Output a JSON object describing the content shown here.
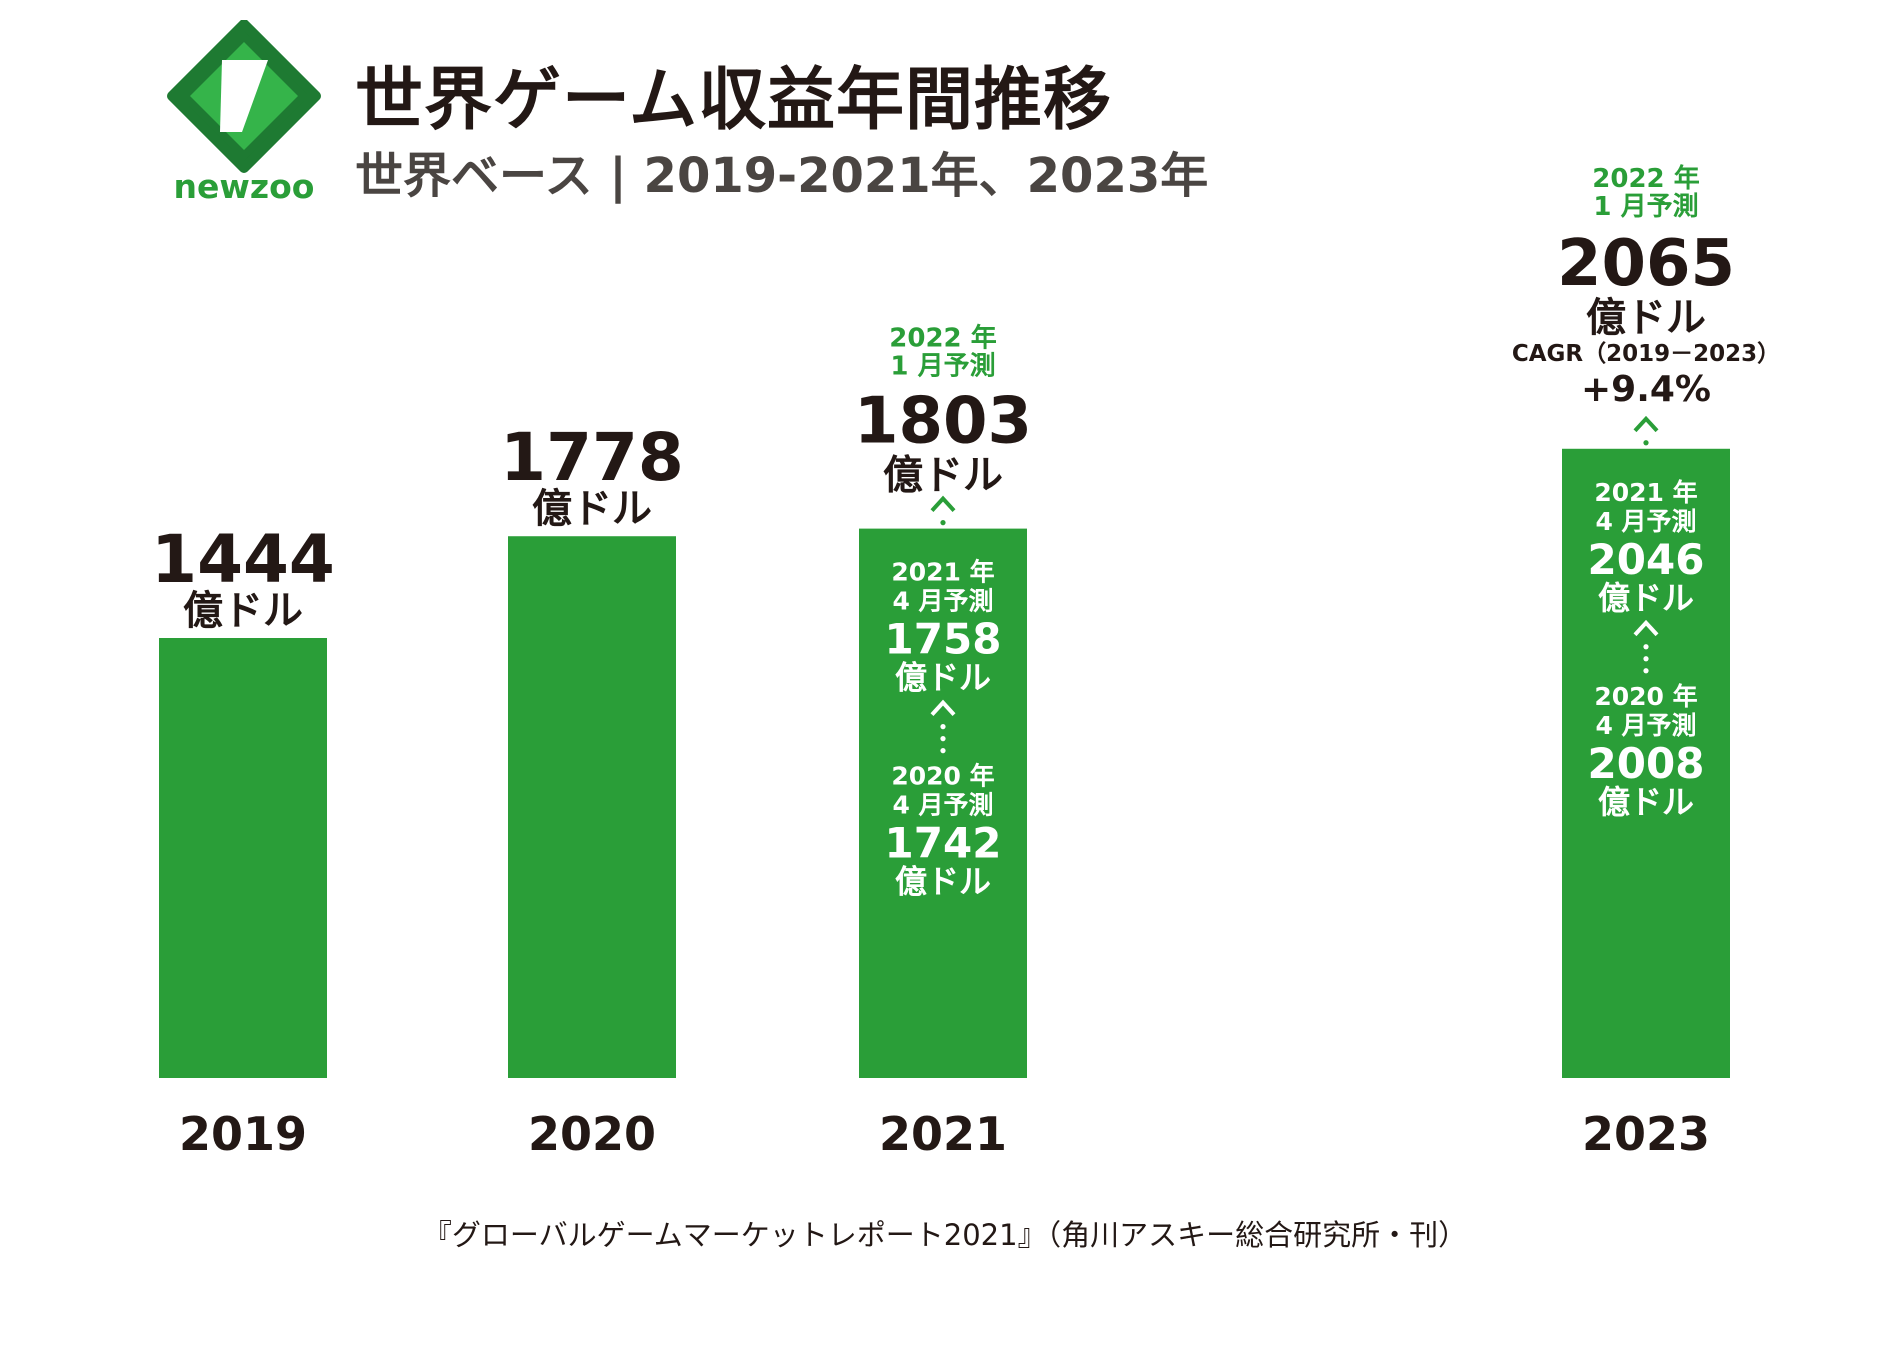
{
  "header": {
    "title": "世界ゲーム収益年間推移",
    "subtitle": "世界ベース | 2019-2021年、2023年",
    "brand": "newzoo"
  },
  "colors": {
    "bar": "#2a9e38",
    "accent_green": "#2a9e38",
    "text": "#231815",
    "bar_text": "#ffffff",
    "logo_dark": "#1e7a32",
    "logo_light": "#35b44a"
  },
  "unit": "億ドル",
  "chart_data": {
    "type": "bar",
    "categories": [
      "2019",
      "2020",
      "2021",
      "2023"
    ],
    "values": [
      1444,
      1778,
      1803,
      2065
    ],
    "ylim": [
      0,
      2500
    ],
    "bars": [
      {
        "year": "2019",
        "value": "1444",
        "unit": "億ドル",
        "forecast_label": "",
        "history": []
      },
      {
        "year": "2020",
        "value": "1778",
        "unit": "億ドル",
        "forecast_label": "",
        "history": []
      },
      {
        "year": "2021",
        "value": "1803",
        "unit": "億ドル",
        "forecast_label": [
          "2022 年",
          "1 月予測"
        ],
        "history": [
          {
            "label": [
              "2021 年",
              "4 月予測"
            ],
            "value": "1758",
            "unit": "億ドル"
          },
          {
            "label": [
              "2020 年",
              "4 月予測"
            ],
            "value": "1742",
            "unit": "億ドル"
          }
        ]
      },
      {
        "year": "2023",
        "value": "2065",
        "unit": "億ドル",
        "forecast_label": [
          "2022 年",
          "1 月予測"
        ],
        "cagr_label": "CAGR（2019－2023）",
        "cagr_value": "+9.4%",
        "history": [
          {
            "label": [
              "2021 年",
              "4 月予測"
            ],
            "value": "2046",
            "unit": "億ドル"
          },
          {
            "label": [
              "2020 年",
              "4 月予測"
            ],
            "value": "2008",
            "unit": "億ドル"
          }
        ]
      }
    ]
  },
  "source": "『グローバルゲームマーケットレポート2021』（角川アスキー総合研究所・刊）"
}
